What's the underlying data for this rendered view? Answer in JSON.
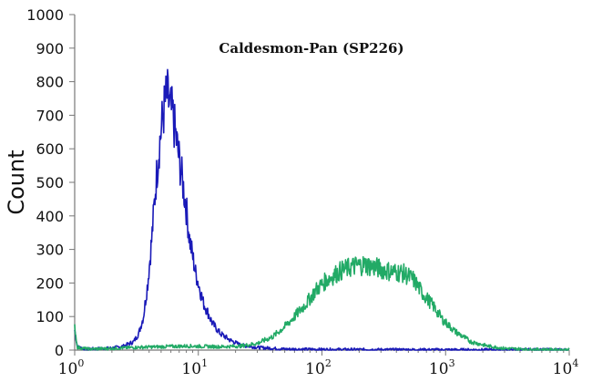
{
  "chart_data": {
    "type": "line",
    "title": "Caldesmon-Pan (SP226)",
    "xlabel": "",
    "ylabel": "Count",
    "xscale": "log",
    "xlim": [
      1,
      10000
    ],
    "ylim": [
      0,
      1000
    ],
    "y_ticks": [
      "0",
      "100",
      "200",
      "300",
      "400",
      "500",
      "600",
      "700",
      "800",
      "900",
      "1000"
    ],
    "x_ticks": [
      {
        "value": 1,
        "base": "10",
        "exp": "0"
      },
      {
        "value": 10,
        "base": "10",
        "exp": "1"
      },
      {
        "value": 100,
        "base": "10",
        "exp": "2"
      },
      {
        "value": 1000,
        "base": "10",
        "exp": "3"
      },
      {
        "value": 10000,
        "base": "10",
        "exp": "4"
      }
    ],
    "grid": false,
    "legend": "none",
    "series": [
      {
        "color": "#1a1ab8",
        "points": [
          [
            1,
            60
          ],
          [
            1.05,
            10
          ],
          [
            1.2,
            3
          ],
          [
            1.5,
            4
          ],
          [
            2,
            6
          ],
          [
            2.5,
            12
          ],
          [
            3,
            25
          ],
          [
            3.3,
            50
          ],
          [
            3.6,
            100
          ],
          [
            3.9,
            200
          ],
          [
            4.2,
            330
          ],
          [
            4.5,
            480
          ],
          [
            4.8,
            600
          ],
          [
            5.1,
            680
          ],
          [
            5.4,
            740
          ],
          [
            5.6,
            760
          ],
          [
            5.9,
            720
          ],
          [
            6.2,
            700
          ],
          [
            6.5,
            650
          ],
          [
            6.8,
            600
          ],
          [
            7.2,
            540
          ],
          [
            7.6,
            480
          ],
          [
            8,
            420
          ],
          [
            8.5,
            330
          ],
          [
            9,
            280
          ],
          [
            9.5,
            230
          ],
          [
            10,
            200
          ],
          [
            11,
            140
          ],
          [
            12,
            110
          ],
          [
            13,
            80
          ],
          [
            15,
            50
          ],
          [
            18,
            30
          ],
          [
            22,
            15
          ],
          [
            30,
            8
          ],
          [
            50,
            3
          ],
          [
            100,
            2
          ],
          [
            1000,
            1
          ],
          [
            10000,
            1
          ]
        ]
      },
      {
        "color": "#22aa66",
        "points": [
          [
            1,
            70
          ],
          [
            1.05,
            8
          ],
          [
            1.3,
            3
          ],
          [
            2,
            5
          ],
          [
            3,
            8
          ],
          [
            5,
            10
          ],
          [
            8,
            12
          ],
          [
            15,
            10
          ],
          [
            22,
            12
          ],
          [
            30,
            20
          ],
          [
            40,
            40
          ],
          [
            50,
            70
          ],
          [
            60,
            100
          ],
          [
            75,
            140
          ],
          [
            90,
            180
          ],
          [
            110,
            210
          ],
          [
            140,
            235
          ],
          [
            180,
            250
          ],
          [
            220,
            255
          ],
          [
            280,
            245
          ],
          [
            350,
            235
          ],
          [
            450,
            230
          ],
          [
            550,
            210
          ],
          [
            650,
            170
          ],
          [
            800,
            130
          ],
          [
            950,
            90
          ],
          [
            1200,
            55
          ],
          [
            1600,
            25
          ],
          [
            2200,
            12
          ],
          [
            3000,
            5
          ],
          [
            5000,
            2
          ],
          [
            10000,
            1
          ]
        ]
      }
    ]
  }
}
